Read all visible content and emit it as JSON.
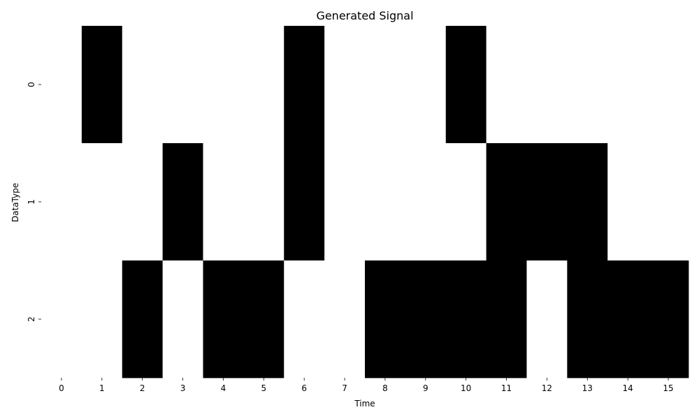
{
  "chart_data": {
    "type": "heatmap",
    "title": "Generated Signal",
    "xlabel": "Time",
    "ylabel": "DataType",
    "x": [
      "0",
      "1",
      "2",
      "3",
      "4",
      "5",
      "6",
      "7",
      "8",
      "9",
      "10",
      "11",
      "12",
      "13",
      "14",
      "15"
    ],
    "y": [
      "0",
      "1",
      "2"
    ],
    "values": [
      [
        0,
        1,
        0,
        0,
        0,
        0,
        1,
        0,
        0,
        0,
        1,
        0,
        0,
        0,
        0,
        0
      ],
      [
        0,
        0,
        0,
        1,
        0,
        0,
        1,
        0,
        0,
        0,
        0,
        1,
        1,
        1,
        0,
        0
      ],
      [
        0,
        0,
        1,
        0,
        1,
        1,
        0,
        0,
        1,
        1,
        1,
        1,
        0,
        1,
        1,
        1
      ]
    ],
    "colormap": {
      "0": "#ffffff",
      "1": "#000000"
    },
    "colorbar": false,
    "grid": false
  }
}
